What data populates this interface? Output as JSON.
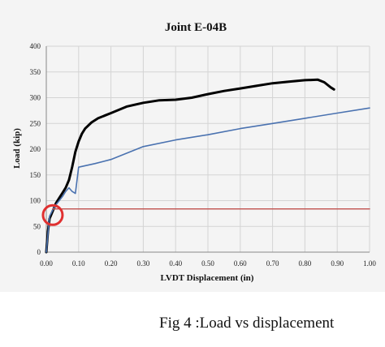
{
  "caption": "Fig 4 :Load vs displacement",
  "chart_data": {
    "type": "line",
    "title": "Joint E-04B",
    "xlabel": "LVDT Displacement (in)",
    "ylabel": "Load (kip)",
    "xlim": [
      0,
      1.0
    ],
    "ylim": [
      0,
      400
    ],
    "x_ticks": [
      0.0,
      0.1,
      0.2,
      0.3,
      0.4,
      0.5,
      0.6,
      0.7,
      0.8,
      0.9,
      1.0
    ],
    "x_tick_labels": [
      "0.00",
      "0.10",
      "0.20",
      "0.30",
      "0.40",
      "0.50",
      "0.60",
      "0.70",
      "0.80",
      "0.90",
      "1.00"
    ],
    "y_ticks": [
      0,
      50,
      100,
      150,
      200,
      250,
      300,
      350,
      400
    ],
    "y_tick_labels": [
      "0",
      "50",
      "100",
      "150",
      "200",
      "250",
      "300",
      "350",
      "400"
    ],
    "grid": true,
    "series": [
      {
        "color": "#000000",
        "x": [
          0.0,
          0.005,
          0.01,
          0.02,
          0.03,
          0.04,
          0.05,
          0.06,
          0.07,
          0.08,
          0.09,
          0.1,
          0.11,
          0.12,
          0.14,
          0.16,
          0.18,
          0.2,
          0.25,
          0.3,
          0.35,
          0.4,
          0.45,
          0.5,
          0.55,
          0.6,
          0.65,
          0.7,
          0.75,
          0.8,
          0.84,
          0.86,
          0.88,
          0.89
        ],
        "y": [
          0,
          40,
          65,
          80,
          95,
          105,
          115,
          125,
          140,
          165,
          195,
          215,
          230,
          240,
          252,
          260,
          265,
          270,
          283,
          290,
          295,
          296,
          300,
          307,
          313,
          318,
          323,
          328,
          331,
          334,
          335,
          330,
          320,
          316
        ]
      },
      {
        "color": "#4a72b0",
        "x": [
          0.0,
          0.01,
          0.02,
          0.03,
          0.04,
          0.05,
          0.06,
          0.07,
          0.08,
          0.09,
          0.1,
          0.15,
          0.2,
          0.3,
          0.4,
          0.5,
          0.6,
          0.7,
          0.8,
          0.9,
          1.0
        ],
        "y": [
          0,
          70,
          82,
          92,
          100,
          108,
          118,
          125,
          118,
          114,
          165,
          172,
          180,
          205,
          218,
          228,
          240,
          250,
          260,
          270,
          280
        ]
      },
      {
        "color": "#c0504d",
        "x": [
          0.02,
          1.0
        ],
        "y": [
          84,
          84
        ]
      }
    ],
    "annotations": [
      {
        "type": "circle",
        "color": "#e03030",
        "x": 0.02,
        "y": 72
      }
    ]
  }
}
